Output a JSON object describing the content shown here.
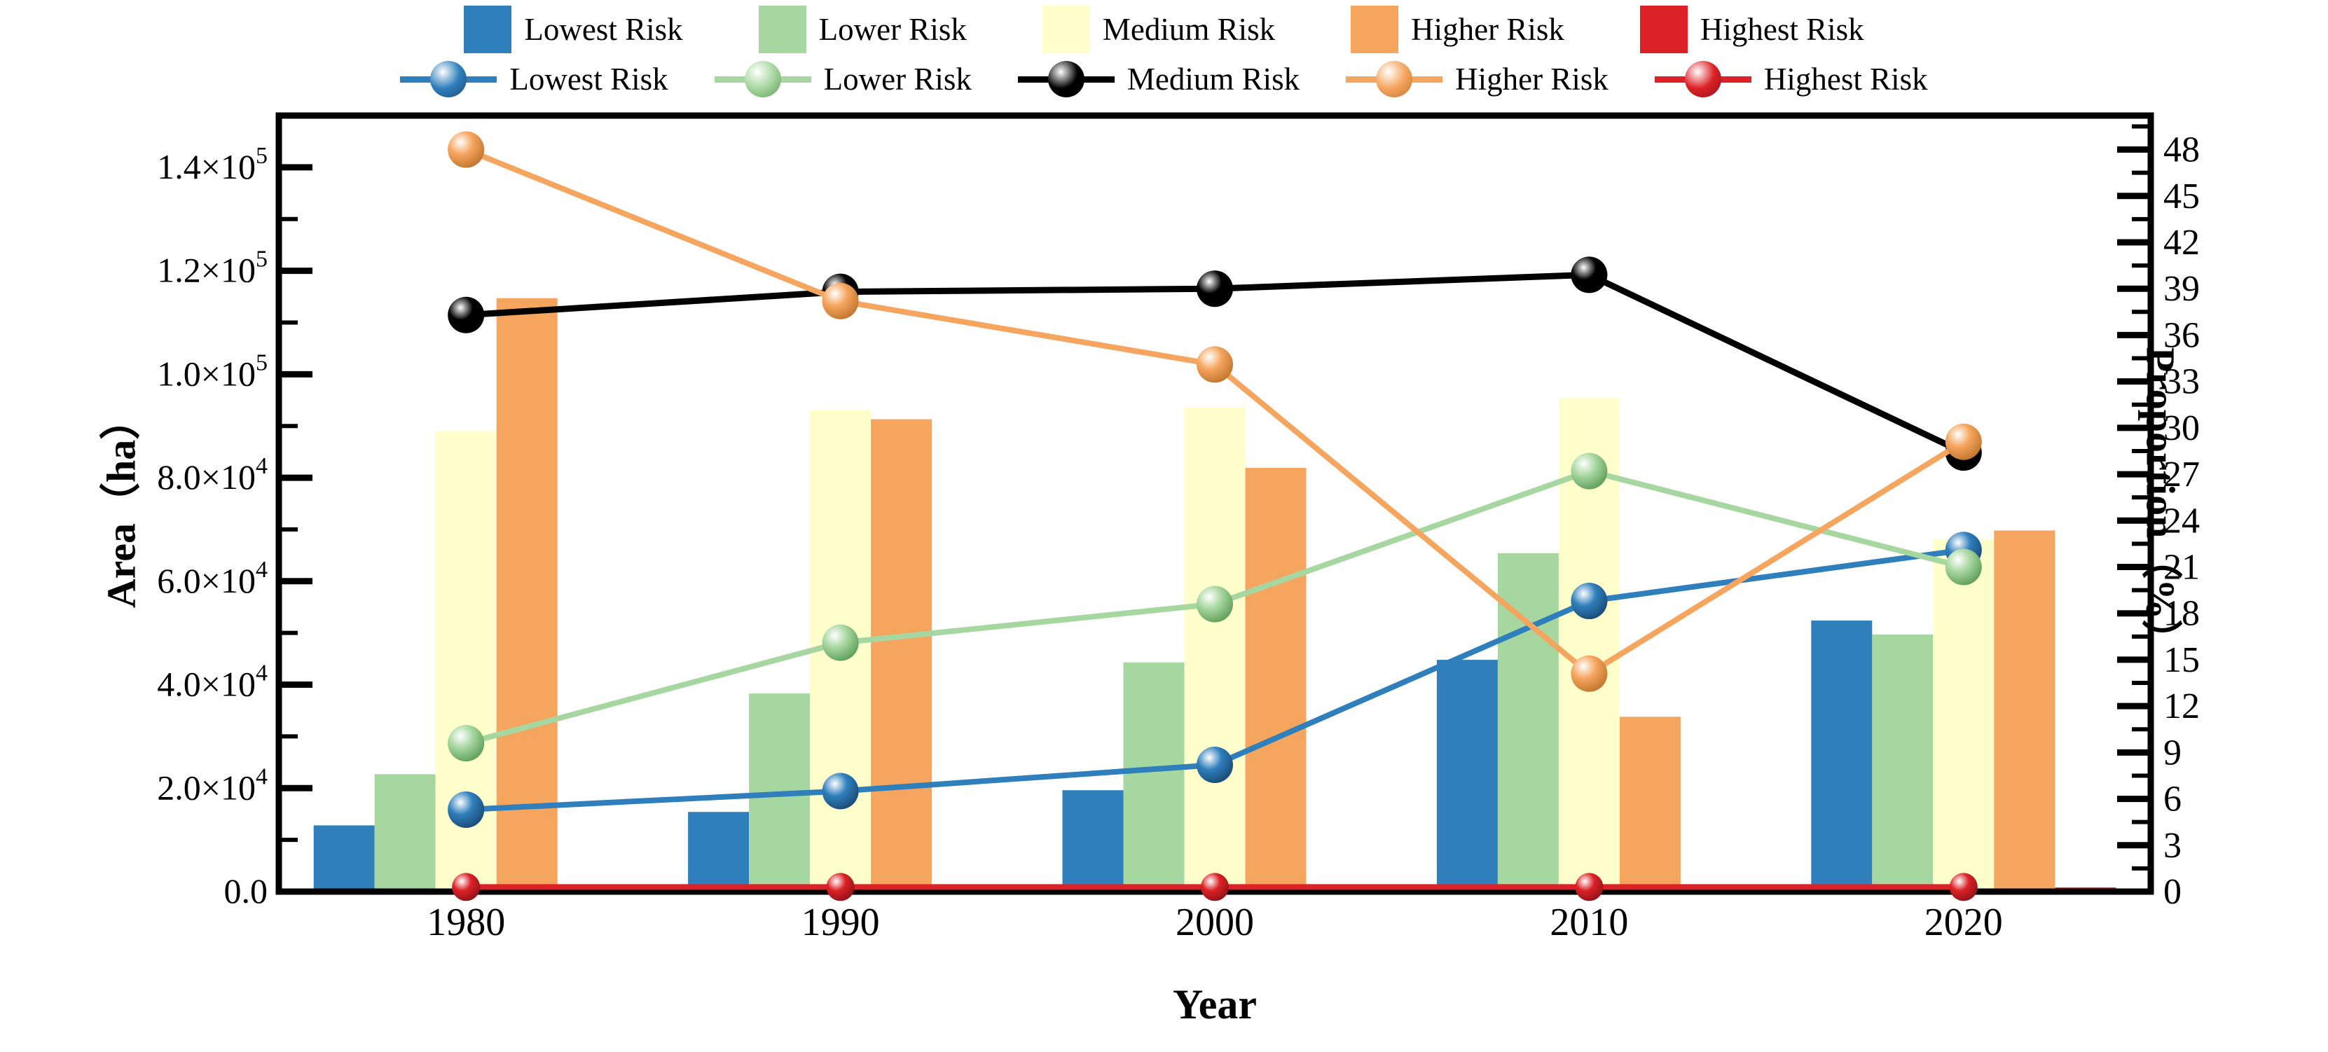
{
  "legend": {
    "bar_series_labels": [
      "Lowest Risk",
      "Lower Risk",
      "Medium Risk",
      "Higher Risk",
      "Highest Risk"
    ],
    "line_series_labels": [
      "Lowest Risk",
      "Lower Risk",
      "Medium Risk",
      "Higher Risk",
      "Highest Risk"
    ]
  },
  "axis_titles": {
    "left": "Area（ha）",
    "right": "Proportion（%）",
    "bottom": "Year"
  },
  "colors": {
    "lowest": "#2f7fbc",
    "lower": "#a7d7a0",
    "medium_bar": "#ffffcc",
    "medium_line": "#000000",
    "higher": "#f6a55f",
    "highest": "#dc2126"
  },
  "chart_data": {
    "type": "bar+line",
    "categories": [
      "1980",
      "1990",
      "2000",
      "2010",
      "2020"
    ],
    "bar_series": [
      {
        "name": "Lowest Risk",
        "color": "#2f7fbc",
        "values": [
          12800,
          15400,
          19600,
          44800,
          52400
        ]
      },
      {
        "name": "Lower Risk",
        "color": "#a7d7a0",
        "values": [
          22700,
          38300,
          44300,
          65400,
          49700
        ]
      },
      {
        "name": "Medium Risk",
        "color": "#ffffcc",
        "values": [
          89000,
          93100,
          93600,
          95400,
          68100
        ]
      },
      {
        "name": "Higher Risk",
        "color": "#f6a55f",
        "values": [
          114700,
          91300,
          81900,
          33800,
          69800
        ]
      },
      {
        "name": "Highest Risk",
        "color": "#dc2126",
        "values": [
          800,
          800,
          800,
          800,
          800
        ]
      }
    ],
    "line_series": [
      {
        "name": "Lowest Risk",
        "color": "#2f7fbc",
        "dark": "#1a4a75",
        "values": [
          5.3,
          6.5,
          8.2,
          18.8,
          22.1
        ]
      },
      {
        "name": "Lower Risk",
        "color": "#a7d7a0",
        "dark": "#5f9e58",
        "values": [
          9.6,
          16.1,
          18.6,
          27.2,
          21.0
        ]
      },
      {
        "name": "Medium Risk",
        "color": "#000000",
        "dark": "#000000",
        "values": [
          37.3,
          38.8,
          39.0,
          39.9,
          28.4
        ]
      },
      {
        "name": "Higher Risk",
        "color": "#f6a55f",
        "dark": "#c1752b",
        "values": [
          48.0,
          38.2,
          34.1,
          14.1,
          29.1
        ]
      },
      {
        "name": "Highest Risk",
        "color": "#dc2126",
        "dark": "#8f1318",
        "values": [
          0.3,
          0.3,
          0.3,
          0.3,
          0.3
        ]
      }
    ],
    "left_axis": {
      "label": "Area（ha）",
      "max": 150000,
      "major_ticks": [
        {
          "value": 0,
          "text": "0.0",
          "sup": ""
        },
        {
          "value": 20000,
          "text": "2.0×10",
          "sup": "4"
        },
        {
          "value": 40000,
          "text": "4.0×10",
          "sup": "4"
        },
        {
          "value": 60000,
          "text": "6.0×10",
          "sup": "4"
        },
        {
          "value": 80000,
          "text": "8.0×10",
          "sup": "4"
        },
        {
          "value": 100000,
          "text": "1.0×10",
          "sup": "5"
        },
        {
          "value": 120000,
          "text": "1.2×10",
          "sup": "5"
        },
        {
          "value": 140000,
          "text": "1.4×10",
          "sup": "5"
        }
      ],
      "minor_ticks": [
        10000,
        30000,
        50000,
        70000,
        90000,
        110000,
        130000
      ]
    },
    "right_axis": {
      "label": "Proportion（%）",
      "max": 50.2,
      "major_ticks": [
        0,
        3,
        6,
        9,
        12,
        15,
        18,
        21,
        24,
        27,
        30,
        33,
        36,
        39,
        42,
        45,
        48
      ],
      "minor_ticks": [
        1.5,
        4.5,
        7.5,
        10.5,
        13.5,
        16.5,
        19.5,
        22.5,
        25.5,
        28.5,
        31.5,
        34.5,
        37.5,
        40.5,
        43.5,
        46.5,
        49.5
      ]
    },
    "xlabel": "Year",
    "grid": false,
    "legend_position": "top"
  }
}
